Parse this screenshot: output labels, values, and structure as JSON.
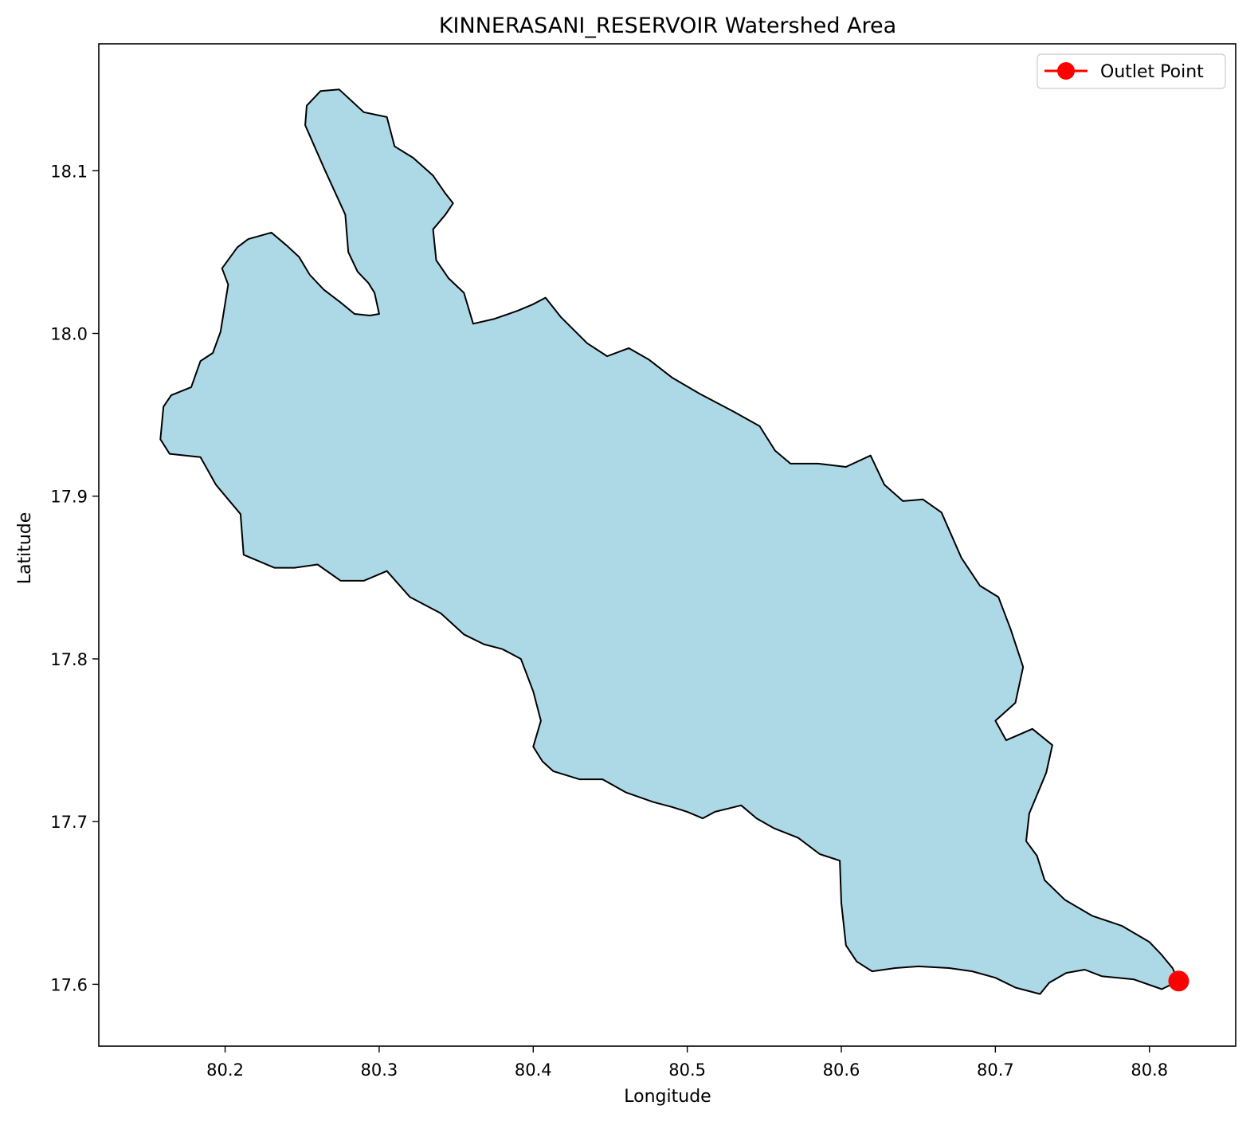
{
  "title": "KINNERASANI_RESERVOIR Watershed Area",
  "xlabel": "Longitude",
  "ylabel": "Latitude",
  "legend": {
    "label": "Outlet Point",
    "placement": "top-right"
  },
  "colors": {
    "fill": "#add8e6",
    "edge": "#000000",
    "outlet": "#ff0000"
  },
  "chart_data": {
    "type": "area",
    "title": "KINNERASANI_RESERVOIR Watershed Area",
    "xlabel": "Longitude",
    "ylabel": "Latitude",
    "xlim": [
      80.118,
      80.856
    ],
    "ylim": [
      17.562,
      18.178
    ],
    "grid": false,
    "legend_placement": "top-right",
    "xticks": [
      80.2,
      80.3,
      80.4,
      80.5,
      80.6,
      80.7,
      80.8
    ],
    "xtick_labels": [
      "80.2",
      "80.3",
      "80.4",
      "80.5",
      "80.6",
      "80.7",
      "80.8"
    ],
    "yticks": [
      17.6,
      17.7,
      17.8,
      17.9,
      18.0,
      18.1
    ],
    "ytick_labels": [
      "17.6",
      "17.7",
      "17.8",
      "17.9",
      "18.0",
      "18.1"
    ],
    "watershed_boundary": [
      [
        80.819,
        17.602
      ],
      [
        80.808,
        17.597
      ],
      [
        80.79,
        17.603
      ],
      [
        80.769,
        17.605
      ],
      [
        80.758,
        17.609
      ],
      [
        80.746,
        17.607
      ],
      [
        80.735,
        17.601
      ],
      [
        80.729,
        17.594
      ],
      [
        80.713,
        17.598
      ],
      [
        80.7,
        17.604
      ],
      [
        80.685,
        17.608
      ],
      [
        80.67,
        17.61
      ],
      [
        80.65,
        17.611
      ],
      [
        80.635,
        17.61
      ],
      [
        80.62,
        17.608
      ],
      [
        80.61,
        17.614
      ],
      [
        80.603,
        17.624
      ],
      [
        80.6,
        17.65
      ],
      [
        80.599,
        17.676
      ],
      [
        80.586,
        17.68
      ],
      [
        80.572,
        17.69
      ],
      [
        80.556,
        17.696
      ],
      [
        80.545,
        17.702
      ],
      [
        80.535,
        17.71
      ],
      [
        80.518,
        17.706
      ],
      [
        80.51,
        17.702
      ],
      [
        80.5,
        17.706
      ],
      [
        80.49,
        17.709
      ],
      [
        80.478,
        17.712
      ],
      [
        80.46,
        17.718
      ],
      [
        80.445,
        17.726
      ],
      [
        80.43,
        17.726
      ],
      [
        80.413,
        17.731
      ],
      [
        80.406,
        17.737
      ],
      [
        80.4,
        17.746
      ],
      [
        80.405,
        17.762
      ],
      [
        80.4,
        17.78
      ],
      [
        80.392,
        17.8
      ],
      [
        80.38,
        17.806
      ],
      [
        80.368,
        17.809
      ],
      [
        80.355,
        17.815
      ],
      [
        80.34,
        17.828
      ],
      [
        80.32,
        17.838
      ],
      [
        80.305,
        17.854
      ],
      [
        80.29,
        17.848
      ],
      [
        80.275,
        17.848
      ],
      [
        80.26,
        17.858
      ],
      [
        80.245,
        17.856
      ],
      [
        80.232,
        17.856
      ],
      [
        80.212,
        17.864
      ],
      [
        80.21,
        17.889
      ],
      [
        80.202,
        17.898
      ],
      [
        80.194,
        17.907
      ],
      [
        80.184,
        17.924
      ],
      [
        80.164,
        17.926
      ],
      [
        80.158,
        17.935
      ],
      [
        80.16,
        17.955
      ],
      [
        80.165,
        17.962
      ],
      [
        80.178,
        17.967
      ],
      [
        80.184,
        17.983
      ],
      [
        80.192,
        17.988
      ],
      [
        80.197,
        18.001
      ],
      [
        80.202,
        18.03
      ],
      [
        80.198,
        18.04
      ],
      [
        80.208,
        18.053
      ],
      [
        80.215,
        18.058
      ],
      [
        80.23,
        18.062
      ],
      [
        80.24,
        18.054
      ],
      [
        80.248,
        18.047
      ],
      [
        80.255,
        18.036
      ],
      [
        80.264,
        18.027
      ],
      [
        80.275,
        18.019
      ],
      [
        80.284,
        18.012
      ],
      [
        80.294,
        18.011
      ],
      [
        80.3,
        18.012
      ],
      [
        80.297,
        18.025
      ],
      [
        80.293,
        18.031
      ],
      [
        80.286,
        18.038
      ],
      [
        80.28,
        18.05
      ],
      [
        80.278,
        18.073
      ],
      [
        80.265,
        18.1
      ],
      [
        80.258,
        18.115
      ],
      [
        80.252,
        18.128
      ],
      [
        80.253,
        18.14
      ],
      [
        80.262,
        18.149
      ],
      [
        80.274,
        18.15
      ],
      [
        80.29,
        18.136
      ],
      [
        80.305,
        18.133
      ],
      [
        80.31,
        18.115
      ],
      [
        80.322,
        18.108
      ],
      [
        80.335,
        18.097
      ],
      [
        80.343,
        18.086
      ],
      [
        80.348,
        18.08
      ],
      [
        80.343,
        18.073
      ],
      [
        80.335,
        18.064
      ],
      [
        80.337,
        18.045
      ],
      [
        80.345,
        18.034
      ],
      [
        80.355,
        18.025
      ],
      [
        80.361,
        18.006
      ],
      [
        80.375,
        18.009
      ],
      [
        80.39,
        18.014
      ],
      [
        80.4,
        18.018
      ],
      [
        80.408,
        18.022
      ],
      [
        80.418,
        18.01
      ],
      [
        80.435,
        17.994
      ],
      [
        80.448,
        17.986
      ],
      [
        80.462,
        17.991
      ],
      [
        80.475,
        17.984
      ],
      [
        80.49,
        17.973
      ],
      [
        80.508,
        17.963
      ],
      [
        80.53,
        17.952
      ],
      [
        80.547,
        17.943
      ],
      [
        80.557,
        17.928
      ],
      [
        80.567,
        17.92
      ],
      [
        80.585,
        17.92
      ],
      [
        80.603,
        17.918
      ],
      [
        80.619,
        17.925
      ],
      [
        80.628,
        17.907
      ],
      [
        80.64,
        17.897
      ],
      [
        80.653,
        17.898
      ],
      [
        80.665,
        17.89
      ],
      [
        80.678,
        17.862
      ],
      [
        80.69,
        17.845
      ],
      [
        80.702,
        17.838
      ],
      [
        80.71,
        17.818
      ],
      [
        80.718,
        17.795
      ],
      [
        80.713,
        17.773
      ],
      [
        80.7,
        17.762
      ],
      [
        80.707,
        17.75
      ],
      [
        80.724,
        17.757
      ],
      [
        80.737,
        17.747
      ],
      [
        80.733,
        17.73
      ],
      [
        80.722,
        17.705
      ],
      [
        80.72,
        17.688
      ],
      [
        80.727,
        17.679
      ],
      [
        80.732,
        17.664
      ],
      [
        80.745,
        17.652
      ],
      [
        80.763,
        17.642
      ],
      [
        80.782,
        17.636
      ],
      [
        80.8,
        17.626
      ],
      [
        80.808,
        17.618
      ],
      [
        80.815,
        17.61
      ],
      [
        80.819,
        17.602
      ]
    ],
    "outlet_point": {
      "x": 80.819,
      "y": 17.602
    }
  }
}
